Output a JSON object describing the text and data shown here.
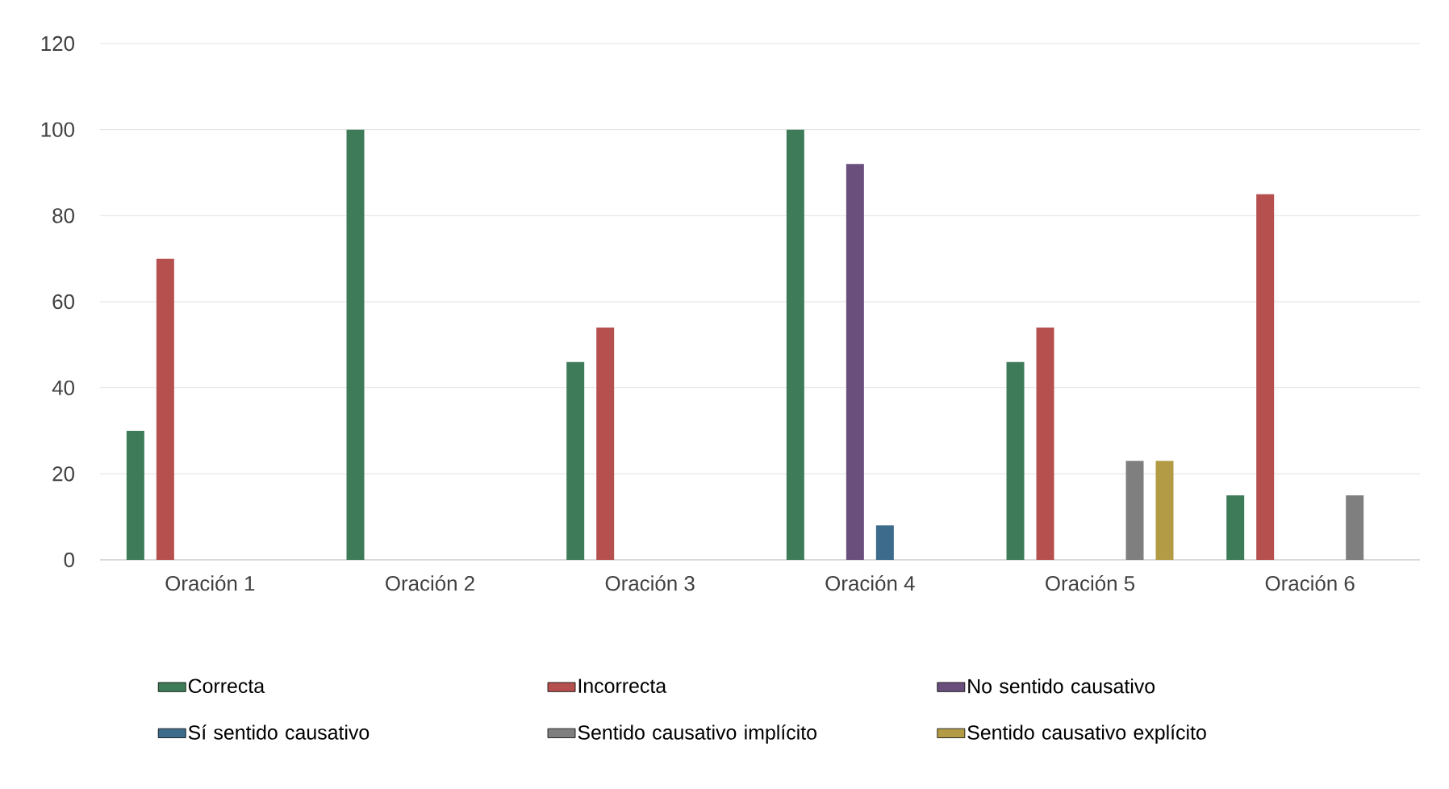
{
  "chart_data": {
    "type": "bar",
    "categories": [
      "Oración 1",
      "Oración 2",
      "Oración 3",
      "Oración 4",
      "Oración 5",
      "Oración 6"
    ],
    "series": [
      {
        "name": "Correcta",
        "color": "#3e7c59",
        "values": [
          30,
          100,
          46,
          100,
          46,
          15
        ]
      },
      {
        "name": "Incorrecta",
        "color": "#b5504f",
        "values": [
          70,
          null,
          54,
          null,
          54,
          85
        ]
      },
      {
        "name": "No sentido causativo",
        "color": "#6a4f7c",
        "values": [
          null,
          null,
          null,
          92,
          null,
          null
        ]
      },
      {
        "name": "Sí sentido causativo",
        "color": "#3d6b8c",
        "values": [
          null,
          null,
          null,
          8,
          null,
          null
        ]
      },
      {
        "name": "Sentido causativo implícito",
        "color": "#7f7f7f",
        "values": [
          null,
          null,
          null,
          null,
          23,
          15
        ]
      },
      {
        "name": "Sentido causativo explícito",
        "color": "#b39b45",
        "values": [
          null,
          null,
          null,
          null,
          23,
          null
        ]
      }
    ],
    "ylim": [
      0,
      120
    ],
    "yticks": [
      0,
      20,
      40,
      60,
      80,
      100,
      120
    ],
    "grid": "y",
    "legend": "bottom"
  }
}
